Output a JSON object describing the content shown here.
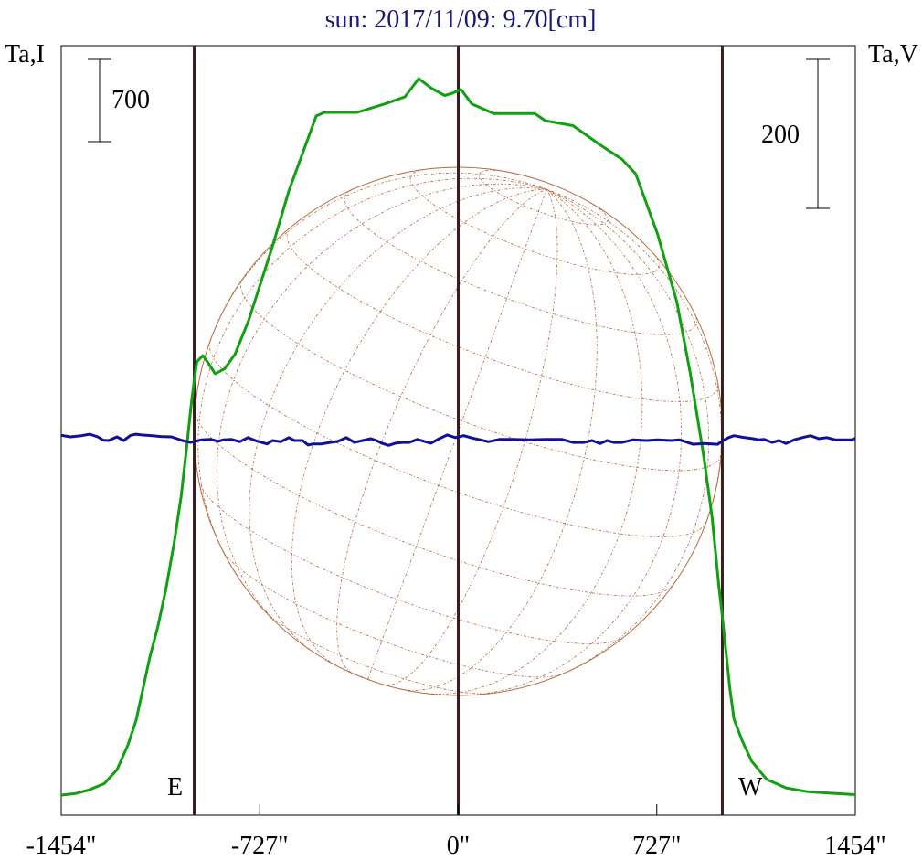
{
  "chart_data": {
    "type": "line",
    "title": "sun: 2017/11/09: 9.70[cm]",
    "left_axis_label": "Ta,I",
    "right_axis_label": "Ta,V",
    "scale_bar_left": "700",
    "scale_bar_right": "200",
    "limb_label_east": "E",
    "limb_label_west": "W",
    "x_ticks": [
      {
        "value": -1454,
        "label": "-1454\""
      },
      {
        "value": -727,
        "label": "-727\""
      },
      {
        "value": 0,
        "label": "0\""
      },
      {
        "value": 727,
        "label": "727\""
      },
      {
        "value": 1454,
        "label": "1454\""
      }
    ],
    "xlim": [
      -1454,
      1454
    ],
    "limb_markers": [
      -967,
      0,
      967
    ],
    "disk_radius_arcsec": 967,
    "colors": {
      "intensity": "#11a011",
      "polarization": "#10109a",
      "limb_lines": "#3a1e1e",
      "disk": "#b5683f",
      "title": "#191970"
    },
    "series": [
      {
        "name": "Ta,I",
        "color": "#11a011",
        "points": [
          [
            -1454,
            0
          ],
          [
            -1400,
            70
          ],
          [
            -1354,
            210
          ],
          [
            -1296,
            480
          ],
          [
            -1250,
            1050
          ],
          [
            -1209,
            2100
          ],
          [
            -1180,
            3100
          ],
          [
            -1155,
            4400
          ],
          [
            -1130,
            5700
          ],
          [
            -1100,
            7000
          ],
          [
            -1070,
            8600
          ],
          [
            -1040,
            10500
          ],
          [
            -1015,
            12400
          ],
          [
            -995,
            14400
          ],
          [
            -978,
            16200
          ],
          [
            -966,
            17300
          ],
          [
            -957,
            18000
          ],
          [
            -935,
            18250
          ],
          [
            -916,
            17950
          ],
          [
            -890,
            17500
          ],
          [
            -856,
            17700
          ],
          [
            -818,
            18300
          ],
          [
            -768,
            19700
          ],
          [
            -680,
            22800
          ],
          [
            -620,
            25100
          ],
          [
            -520,
            28200
          ],
          [
            -490,
            28350
          ],
          [
            -370,
            28350
          ],
          [
            -270,
            28700
          ],
          [
            -195,
            29000
          ],
          [
            -145,
            29750
          ],
          [
            -98,
            29350
          ],
          [
            -50,
            29050
          ],
          [
            -20,
            29150
          ],
          [
            10,
            29300
          ],
          [
            50,
            28700
          ],
          [
            130,
            28300
          ],
          [
            280,
            28300
          ],
          [
            320,
            28000
          ],
          [
            420,
            27800
          ],
          [
            520,
            27000
          ],
          [
            600,
            26400
          ],
          [
            650,
            25800
          ],
          [
            730,
            23300
          ],
          [
            800,
            20500
          ],
          [
            850,
            17500
          ],
          [
            900,
            14000
          ],
          [
            930,
            11500
          ],
          [
            955,
            8600
          ],
          [
            967,
            7400
          ],
          [
            978,
            6200
          ],
          [
            995,
            4400
          ],
          [
            1010,
            3150
          ],
          [
            1040,
            2250
          ],
          [
            1075,
            1400
          ],
          [
            1130,
            650
          ],
          [
            1200,
            300
          ],
          [
            1280,
            140
          ],
          [
            1370,
            75
          ],
          [
            1440,
            30
          ],
          [
            1454,
            20
          ]
        ]
      },
      {
        "name": "Ta,V",
        "color": "#10109a",
        "points": [
          [
            -1454,
            9
          ],
          [
            -1420,
            5
          ],
          [
            -1380,
            8
          ],
          [
            -1350,
            12
          ],
          [
            -1320,
            5
          ],
          [
            -1300,
            -4
          ],
          [
            -1280,
            -5
          ],
          [
            -1250,
            5
          ],
          [
            -1225,
            -5
          ],
          [
            -1200,
            9
          ],
          [
            -1180,
            12
          ],
          [
            -1160,
            10
          ],
          [
            -1120,
            8
          ],
          [
            -1090,
            6
          ],
          [
            -1050,
            5
          ],
          [
            -1010,
            -5
          ],
          [
            -980,
            -10
          ],
          [
            -940,
            -3
          ],
          [
            -905,
            -2
          ],
          [
            -880,
            -7
          ],
          [
            -860,
            -3
          ],
          [
            -830,
            -2
          ],
          [
            -800,
            -8
          ],
          [
            -770,
            3
          ],
          [
            -740,
            -6
          ],
          [
            -700,
            -14
          ],
          [
            -680,
            -5
          ],
          [
            -650,
            -8
          ],
          [
            -620,
            3
          ],
          [
            -600,
            -5
          ],
          [
            -570,
            -5
          ],
          [
            -550,
            -17
          ],
          [
            -530,
            -14
          ],
          [
            -500,
            -14
          ],
          [
            -470,
            -10
          ],
          [
            -440,
            -7
          ],
          [
            -410,
            3
          ],
          [
            -380,
            -10
          ],
          [
            -350,
            -5
          ],
          [
            -320,
            0
          ],
          [
            -300,
            -5
          ],
          [
            -280,
            -12
          ],
          [
            -255,
            -18
          ],
          [
            -230,
            -12
          ],
          [
            -205,
            -10
          ],
          [
            -180,
            -10
          ],
          [
            -150,
            -2
          ],
          [
            -100,
            -12
          ],
          [
            -70,
            0
          ],
          [
            -40,
            10
          ],
          [
            -10,
            3
          ],
          [
            20,
            8
          ],
          [
            50,
            2
          ],
          [
            80,
            -3
          ],
          [
            110,
            -8
          ],
          [
            150,
            -2
          ],
          [
            200,
            -2
          ],
          [
            260,
            -3
          ],
          [
            320,
            -2
          ],
          [
            380,
            -2
          ],
          [
            420,
            -10
          ],
          [
            460,
            -10
          ],
          [
            490,
            -5
          ],
          [
            520,
            -13
          ],
          [
            545,
            -5
          ],
          [
            570,
            -10
          ],
          [
            600,
            -10
          ],
          [
            640,
            -3
          ],
          [
            690,
            -5
          ],
          [
            730,
            -3
          ],
          [
            780,
            -5
          ],
          [
            810,
            -3
          ],
          [
            860,
            -15
          ],
          [
            900,
            -13
          ],
          [
            950,
            -15
          ],
          [
            970,
            -5
          ],
          [
            990,
            3
          ],
          [
            1010,
            8
          ],
          [
            1040,
            4
          ],
          [
            1080,
            0
          ],
          [
            1100,
            -3
          ],
          [
            1120,
            -2
          ],
          [
            1150,
            -10
          ],
          [
            1175,
            -5
          ],
          [
            1200,
            -13
          ],
          [
            1230,
            -3
          ],
          [
            1260,
            3
          ],
          [
            1290,
            8
          ],
          [
            1320,
            0
          ],
          [
            1350,
            3
          ],
          [
            1380,
            -3
          ],
          [
            1410,
            -3
          ],
          [
            1440,
            -3
          ],
          [
            1454,
            1
          ]
        ]
      }
    ]
  }
}
